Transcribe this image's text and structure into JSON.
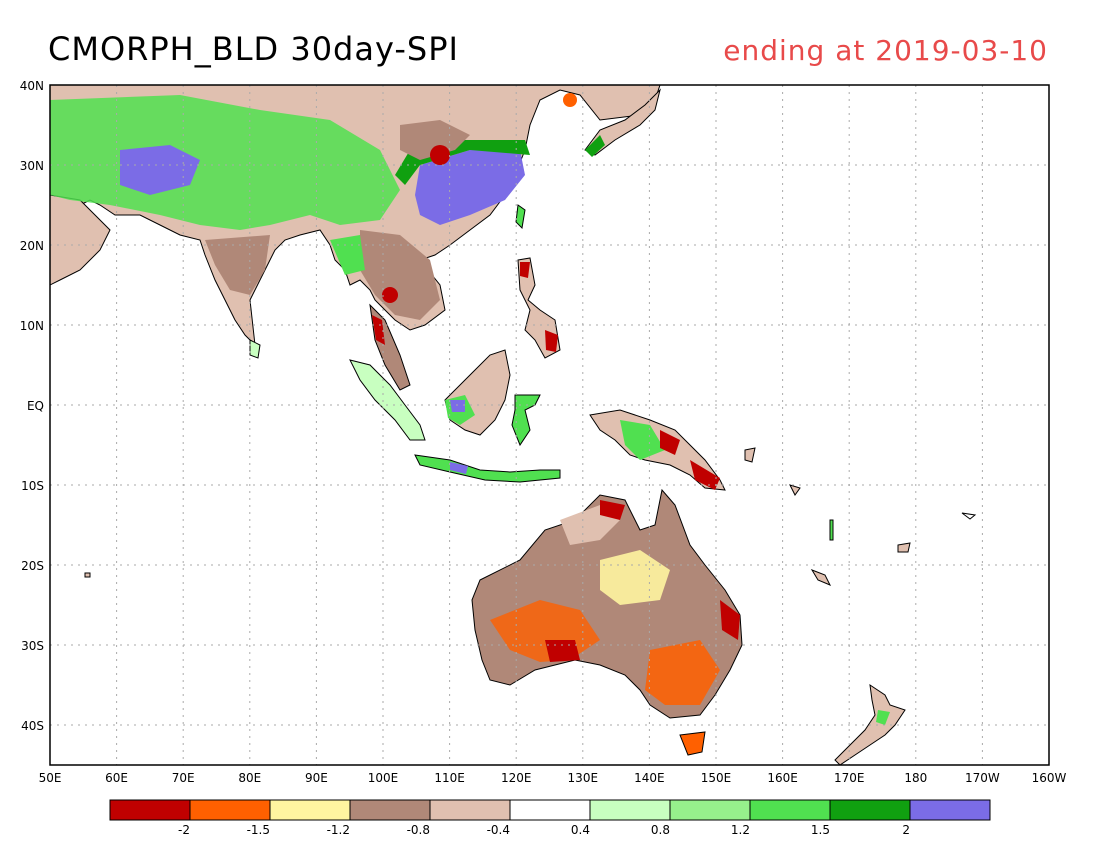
{
  "title": "CMORPH_BLD 30day-SPI",
  "subtitle": "ending at 2019-03-10",
  "axes": {
    "lon_ticks": [
      "50E",
      "60E",
      "70E",
      "80E",
      "90E",
      "100E",
      "110E",
      "120E",
      "130E",
      "140E",
      "150E",
      "160E",
      "170E",
      "180",
      "170W",
      "160W"
    ],
    "lat_ticks": [
      "40N",
      "30N",
      "20N",
      "10N",
      "EQ",
      "10S",
      "20S",
      "30S",
      "40S"
    ]
  },
  "legend": {
    "colors": [
      "#c00000",
      "#ff6000",
      "#fff5a0",
      "#b08878",
      "#e0c0b0",
      "#ffffff",
      "#c8ffc0",
      "#96f08c",
      "#50e050",
      "#10a010",
      "#7b6ce6"
    ],
    "labels": [
      "-2",
      "-1.5",
      "-1.2",
      "-0.8",
      "-0.4",
      "0.4",
      "0.8",
      "1.2",
      "1.5",
      "2"
    ]
  }
}
